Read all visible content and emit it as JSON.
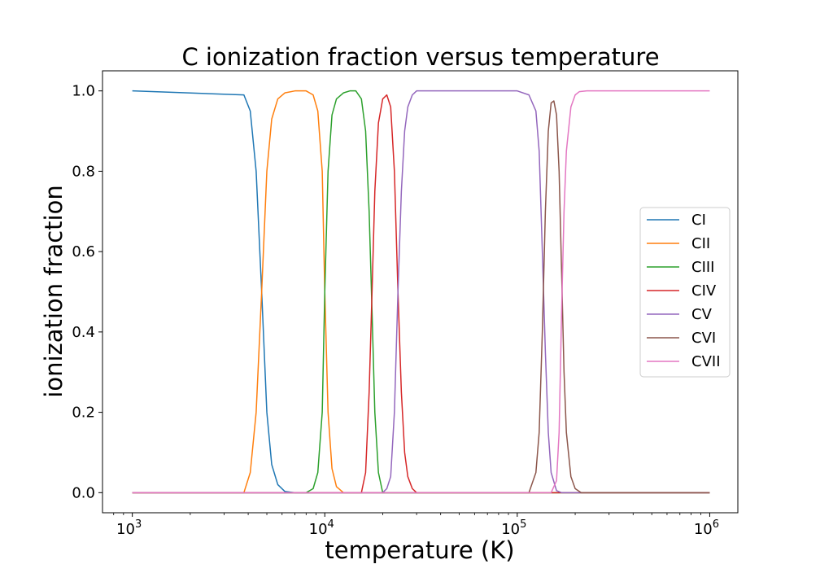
{
  "chart_data": {
    "type": "line",
    "title": "C ionization fraction versus temperature",
    "xlabel": "temperature (K)",
    "ylabel": "ionization fraction",
    "xscale": "log",
    "xlim": [
      700,
      1400000
    ],
    "ylim": [
      -0.05,
      1.05
    ],
    "x_ticks": [
      {
        "value": 1000,
        "label_base": "10",
        "label_exp": "3"
      },
      {
        "value": 10000,
        "label_base": "10",
        "label_exp": "4"
      },
      {
        "value": 100000,
        "label_base": "10",
        "label_exp": "5"
      },
      {
        "value": 1000000,
        "label_base": "10",
        "label_exp": "6"
      }
    ],
    "y_ticks": [
      {
        "value": 0.0,
        "label": "0.0"
      },
      {
        "value": 0.2,
        "label": "0.2"
      },
      {
        "value": 0.4,
        "label": "0.4"
      },
      {
        "value": 0.6,
        "label": "0.6"
      },
      {
        "value": 0.8,
        "label": "0.8"
      },
      {
        "value": 1.0,
        "label": "1.0"
      }
    ],
    "grid": false,
    "legend_position": "center-right",
    "series": [
      {
        "name": "CI",
        "color": "#1f77b4",
        "x": [
          1000,
          3800,
          4100,
          4400,
          4700,
          5000,
          5300,
          5700,
          6200,
          7000,
          1000000
        ],
        "y": [
          1.0,
          0.99,
          0.95,
          0.8,
          0.5,
          0.2,
          0.07,
          0.02,
          0.003,
          0.0,
          0.0
        ]
      },
      {
        "name": "CII",
        "color": "#ff7f0e",
        "x": [
          1000,
          3800,
          4100,
          4400,
          4700,
          5000,
          5300,
          5700,
          6200,
          7000,
          8000,
          8700,
          9200,
          9700,
          10000,
          10400,
          10900,
          11500,
          12500,
          1000000
        ],
        "y": [
          0.0,
          0.0,
          0.05,
          0.2,
          0.5,
          0.8,
          0.93,
          0.98,
          0.995,
          1.0,
          1.0,
          0.99,
          0.95,
          0.8,
          0.5,
          0.2,
          0.06,
          0.015,
          0.0,
          0.0
        ]
      },
      {
        "name": "CIII",
        "color": "#2ca02c",
        "x": [
          1000,
          8000,
          8700,
          9200,
          9700,
          10000,
          10400,
          10900,
          11500,
          12500,
          13500,
          14500,
          15500,
          16300,
          17000,
          17600,
          18200,
          19000,
          20000,
          1000000
        ],
        "y": [
          0.0,
          0.0,
          0.01,
          0.05,
          0.2,
          0.5,
          0.8,
          0.94,
          0.98,
          0.995,
          1.0,
          1.0,
          0.98,
          0.9,
          0.7,
          0.45,
          0.2,
          0.05,
          0.0,
          0.0
        ]
      },
      {
        "name": "CIV",
        "color": "#d62728",
        "x": [
          1000,
          15500,
          16300,
          17000,
          17600,
          18200,
          19000,
          20000,
          21000,
          22000,
          23000,
          24000,
          25000,
          26000,
          27000,
          28500,
          30000,
          1000000
        ],
        "y": [
          0.0,
          0.0,
          0.05,
          0.25,
          0.5,
          0.75,
          0.92,
          0.98,
          0.99,
          0.96,
          0.8,
          0.5,
          0.25,
          0.1,
          0.04,
          0.01,
          0.0,
          0.0
        ]
      },
      {
        "name": "CV",
        "color": "#9467bd",
        "x": [
          1000,
          20000,
          21000,
          22000,
          23000,
          24000,
          25000,
          26000,
          27000,
          28500,
          30000,
          35000,
          50000,
          100000,
          115000,
          125000,
          130000,
          135000,
          140000,
          145000,
          150000,
          160000,
          170000,
          1000000
        ],
        "y": [
          0.0,
          0.0,
          0.01,
          0.04,
          0.2,
          0.5,
          0.75,
          0.9,
          0.96,
          0.99,
          1.0,
          1.0,
          1.0,
          1.0,
          0.99,
          0.95,
          0.85,
          0.6,
          0.35,
          0.15,
          0.05,
          0.005,
          0.0,
          0.0
        ]
      },
      {
        "name": "CVI",
        "color": "#8c564b",
        "x": [
          1000,
          115000,
          125000,
          130000,
          135000,
          140000,
          145000,
          150000,
          155000,
          160000,
          165000,
          170000,
          175000,
          180000,
          190000,
          200000,
          215000,
          1000000
        ],
        "y": [
          0.0,
          0.0,
          0.05,
          0.15,
          0.4,
          0.7,
          0.9,
          0.97,
          0.975,
          0.94,
          0.8,
          0.55,
          0.3,
          0.15,
          0.04,
          0.01,
          0.0,
          0.0
        ]
      },
      {
        "name": "CVII",
        "color": "#e377c2",
        "x": [
          1000,
          150000,
          160000,
          165000,
          170000,
          175000,
          180000,
          190000,
          200000,
          210000,
          230000,
          1000000
        ],
        "y": [
          0.0,
          0.0,
          0.03,
          0.15,
          0.45,
          0.7,
          0.85,
          0.96,
          0.99,
          0.998,
          1.0,
          1.0
        ]
      }
    ]
  }
}
